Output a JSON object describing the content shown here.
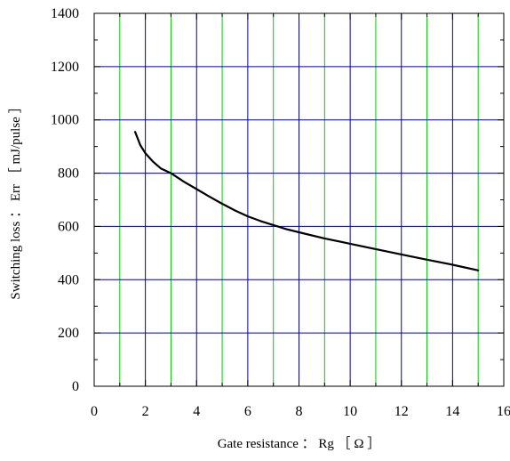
{
  "chart_data": {
    "type": "line",
    "xlabel": "Gate resistance ： Rg ［ Ω ］",
    "ylabel": "Switching loss ： Err ［ mJ/pulse ］",
    "xlim": [
      0,
      16
    ],
    "ylim": [
      0,
      1400
    ],
    "x_ticks": [
      "0",
      "2",
      "4",
      "6",
      "8",
      "10",
      "12",
      "14",
      "16"
    ],
    "y_ticks": [
      "0",
      "200",
      "400",
      "600",
      "800",
      "1000",
      "1200",
      "1400"
    ],
    "x_minor_step": 1,
    "y_minor_step": 100,
    "grid": {
      "vertical_lines_x": [
        1,
        2,
        3,
        4,
        5,
        6,
        7,
        8,
        9,
        10,
        11,
        12,
        13,
        14,
        15
      ],
      "vertical_colors": [
        "#00cc00",
        "#0000aa",
        "#00cc00",
        "#0000aa",
        "#00cc00",
        "#0000aa",
        "#00cc00",
        "#0000aa",
        "#00cc00",
        "#0000aa",
        "#00cc00",
        "#0000aa",
        "#00cc00",
        "#0000aa",
        "#00cc00"
      ],
      "horizontal_lines_y": [
        200,
        400,
        600,
        800,
        1000,
        1200
      ],
      "horizontal_color": "#0000aa"
    },
    "series": [
      {
        "color": "#000000",
        "x": [
          1.6,
          1.8,
          2.0,
          2.3,
          2.6,
          3.0,
          3.5,
          4.0,
          4.5,
          5.0,
          5.5,
          6.0,
          6.5,
          7.0,
          7.5,
          8.0,
          9.0,
          10.0,
          11.0,
          12.0,
          13.0,
          14.0,
          15.0
        ],
        "y": [
          955,
          905,
          875,
          843,
          818,
          800,
          768,
          740,
          712,
          685,
          660,
          638,
          620,
          605,
          590,
          578,
          555,
          535,
          515,
          495,
          475,
          456,
          435
        ]
      }
    ]
  }
}
